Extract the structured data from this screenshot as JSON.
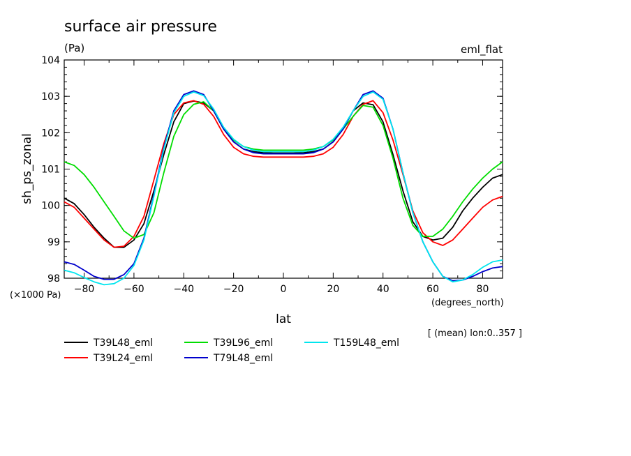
{
  "chart_data": {
    "type": "line",
    "title": "surface air pressure",
    "subtitle": "(Pa)",
    "experiment": "eml_flat",
    "xlabel": "lat",
    "ylabel": "sh_ps_zonal",
    "x_unit": "(degrees_north)",
    "y_scale_note": "(×1000 Pa)",
    "annotation": "[ (mean) lon:0..357 ]",
    "xlim": [
      -88,
      88
    ],
    "ylim": [
      98,
      104
    ],
    "x_ticks": [
      -80,
      -60,
      -40,
      -20,
      0,
      20,
      40,
      60,
      80
    ],
    "x_tick_labels": [
      "−80",
      "−60",
      "−40",
      "−20",
      "0",
      "20",
      "40",
      "60",
      "80"
    ],
    "y_ticks": [
      98,
      99,
      100,
      101,
      102,
      103,
      104
    ],
    "y_tick_labels": [
      "98",
      "99",
      "100",
      "101",
      "102",
      "103",
      "104"
    ],
    "grid": false,
    "legend_position": "bottom",
    "series": [
      {
        "name": "T39L48_eml",
        "color": "#000000",
        "x": [
          -88,
          -84,
          -80,
          -76,
          -72,
          -68,
          -64,
          -60,
          -56,
          -52,
          -48,
          -44,
          -40,
          -36,
          -32,
          -28,
          -24,
          -20,
          -16,
          -12,
          -8,
          -4,
          0,
          4,
          8,
          12,
          16,
          20,
          24,
          28,
          32,
          36,
          40,
          44,
          48,
          52,
          56,
          60,
          64,
          68,
          72,
          76,
          80,
          84,
          88
        ],
        "y": [
          100.2,
          100.05,
          99.75,
          99.4,
          99.1,
          98.85,
          98.85,
          99.05,
          99.5,
          100.4,
          101.4,
          102.3,
          102.8,
          102.87,
          102.82,
          102.6,
          102.1,
          101.75,
          101.55,
          101.48,
          101.45,
          101.44,
          101.44,
          101.44,
          101.45,
          101.48,
          101.55,
          101.75,
          102.1,
          102.6,
          102.82,
          102.77,
          102.3,
          101.4,
          100.4,
          99.55,
          99.15,
          99.05,
          99.1,
          99.4,
          99.85,
          100.2,
          100.5,
          100.75,
          100.85
        ]
      },
      {
        "name": "T39L24_eml",
        "color": "#ff0000",
        "x": [
          -88,
          -84,
          -80,
          -76,
          -72,
          -68,
          -64,
          -60,
          -56,
          -52,
          -48,
          -44,
          -40,
          -36,
          -32,
          -28,
          -24,
          -20,
          -16,
          -12,
          -8,
          -4,
          0,
          4,
          8,
          12,
          16,
          20,
          24,
          28,
          32,
          36,
          40,
          44,
          48,
          52,
          56,
          60,
          64,
          68,
          72,
          76,
          80,
          84,
          88
        ],
        "y": [
          100.1,
          99.95,
          99.65,
          99.35,
          99.05,
          98.85,
          98.88,
          99.15,
          99.7,
          100.7,
          101.7,
          102.5,
          102.82,
          102.88,
          102.78,
          102.45,
          101.95,
          101.6,
          101.42,
          101.35,
          101.33,
          101.33,
          101.33,
          101.33,
          101.33,
          101.35,
          101.42,
          101.6,
          101.95,
          102.45,
          102.78,
          102.88,
          102.55,
          101.8,
          100.85,
          99.85,
          99.25,
          99.0,
          98.9,
          99.05,
          99.35,
          99.65,
          99.95,
          100.15,
          100.25
        ]
      },
      {
        "name": "T39L96_eml",
        "color": "#00dd00",
        "x": [
          -88,
          -84,
          -80,
          -76,
          -72,
          -68,
          -64,
          -60,
          -56,
          -52,
          -48,
          -44,
          -40,
          -36,
          -32,
          -28,
          -24,
          -20,
          -16,
          -12,
          -8,
          -4,
          0,
          4,
          8,
          12,
          16,
          20,
          24,
          28,
          32,
          36,
          40,
          44,
          48,
          52,
          56,
          60,
          64,
          68,
          72,
          76,
          80,
          84,
          88
        ],
        "y": [
          101.2,
          101.1,
          100.85,
          100.5,
          100.1,
          99.7,
          99.3,
          99.1,
          99.2,
          99.8,
          100.9,
          101.9,
          102.5,
          102.78,
          102.85,
          102.6,
          102.1,
          101.8,
          101.62,
          101.55,
          101.52,
          101.52,
          101.52,
          101.52,
          101.52,
          101.55,
          101.62,
          101.8,
          102.1,
          102.45,
          102.75,
          102.7,
          102.2,
          101.3,
          100.2,
          99.45,
          99.15,
          99.15,
          99.35,
          99.7,
          100.1,
          100.45,
          100.75,
          101.0,
          101.2
        ]
      },
      {
        "name": "T79L48_eml",
        "color": "#0000cc",
        "x": [
          -88,
          -84,
          -80,
          -76,
          -72,
          -68,
          -64,
          -60,
          -56,
          -52,
          -48,
          -44,
          -40,
          -36,
          -32,
          -28,
          -24,
          -20,
          -16,
          -12,
          -8,
          -4,
          0,
          4,
          8,
          12,
          16,
          20,
          24,
          28,
          32,
          36,
          40,
          44,
          48,
          52,
          56,
          60,
          64,
          68,
          72,
          76,
          80,
          84,
          88
        ],
        "y": [
          98.45,
          98.38,
          98.22,
          98.05,
          97.97,
          97.97,
          98.1,
          98.4,
          99.1,
          100.3,
          101.6,
          102.6,
          103.05,
          103.15,
          103.05,
          102.6,
          102.1,
          101.75,
          101.55,
          101.45,
          101.42,
          101.42,
          101.42,
          101.42,
          101.42,
          101.45,
          101.55,
          101.75,
          102.1,
          102.6,
          103.05,
          103.15,
          102.95,
          102.1,
          100.9,
          99.8,
          99.0,
          98.45,
          98.05,
          97.93,
          97.95,
          98.05,
          98.18,
          98.28,
          98.32
        ]
      },
      {
        "name": "T159L48_eml",
        "color": "#00e5ee",
        "x": [
          -88,
          -84,
          -80,
          -76,
          -72,
          -68,
          -64,
          -60,
          -56,
          -52,
          -48,
          -44,
          -40,
          -36,
          -32,
          -28,
          -24,
          -20,
          -16,
          -12,
          -8,
          -4,
          0,
          4,
          8,
          12,
          16,
          20,
          24,
          28,
          32,
          36,
          40,
          44,
          48,
          52,
          56,
          60,
          64,
          68,
          72,
          76,
          80,
          84,
          88
        ],
        "y": [
          98.22,
          98.15,
          98.02,
          97.9,
          97.82,
          97.85,
          98.0,
          98.35,
          99.05,
          100.25,
          101.55,
          102.55,
          103.0,
          103.12,
          103.02,
          102.65,
          102.15,
          101.82,
          101.62,
          101.52,
          101.48,
          101.48,
          101.48,
          101.48,
          101.48,
          101.52,
          101.62,
          101.82,
          102.15,
          102.6,
          103.0,
          103.12,
          102.92,
          102.1,
          100.9,
          99.8,
          99.0,
          98.45,
          98.05,
          97.9,
          97.95,
          98.1,
          98.3,
          98.45,
          98.5
        ]
      }
    ]
  }
}
